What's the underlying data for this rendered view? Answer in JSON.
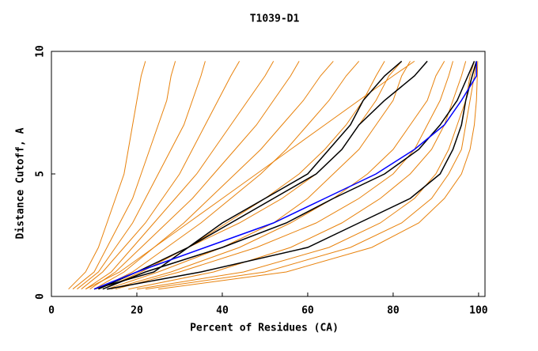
{
  "chart_data": {
    "type": "line",
    "title": "T1039-D1",
    "x_label": "Percent of Residues (CA)",
    "y_label": "Distance Cutoff, A",
    "xlim": [
      0,
      101.5
    ],
    "ylim": [
      0,
      10
    ],
    "xticks": [
      0,
      20,
      40,
      60,
      80,
      100
    ],
    "yticks": [
      0,
      5,
      10
    ],
    "series": [
      {
        "color": "#e8820c",
        "x": [
          4,
          8,
          11,
          13,
          15,
          17,
          18,
          19,
          20,
          21,
          22
        ],
        "values": [
          0.3,
          1,
          2,
          3,
          4,
          5,
          6,
          7,
          8,
          9,
          9.6
        ]
      },
      {
        "color": "#e8820c",
        "x": [
          5,
          10,
          13,
          16,
          19,
          21,
          23,
          25,
          27,
          28,
          29
        ],
        "values": [
          0.3,
          1,
          2,
          3,
          4,
          5,
          6,
          7,
          8,
          9,
          9.6
        ]
      },
      {
        "color": "#e8820c",
        "x": [
          6,
          11,
          15,
          19,
          22,
          25,
          28,
          31,
          33,
          35,
          36
        ],
        "values": [
          0.3,
          1,
          2,
          3,
          4,
          5,
          6,
          7,
          8,
          9,
          9.6
        ]
      },
      {
        "color": "#e8820c",
        "x": [
          7,
          12,
          17,
          22,
          26,
          30,
          33,
          36,
          39,
          42,
          44
        ],
        "values": [
          0.3,
          1,
          2,
          3,
          4,
          5,
          6,
          7,
          8,
          9,
          9.6
        ]
      },
      {
        "color": "#e8820c",
        "x": [
          8,
          14,
          19,
          24,
          29,
          34,
          38,
          42,
          46,
          50,
          52
        ],
        "values": [
          0.3,
          1,
          2,
          3,
          4,
          5,
          6,
          7,
          8,
          9,
          9.6
        ]
      },
      {
        "color": "#e8820c",
        "x": [
          9,
          15,
          21,
          27,
          33,
          38,
          43,
          48,
          52,
          56,
          58
        ],
        "values": [
          0.3,
          1,
          2,
          3,
          4,
          5,
          6,
          7,
          8,
          9,
          9.6
        ]
      },
      {
        "color": "#e8820c",
        "x": [
          10,
          17,
          24,
          31,
          37,
          43,
          49,
          54,
          59,
          63,
          66
        ],
        "values": [
          0.3,
          1,
          2,
          3,
          4,
          5,
          6,
          7,
          8,
          9,
          9.6
        ]
      },
      {
        "color": "#e8820c",
        "x": [
          11,
          19,
          27,
          35,
          42,
          49,
          55,
          60,
          65,
          69,
          72
        ],
        "values": [
          0.3,
          1,
          2,
          3,
          4,
          5,
          6,
          7,
          8,
          9,
          9.6
        ]
      },
      {
        "color": "#e8820c",
        "x": [
          12,
          21,
          32,
          41,
          50,
          58,
          64,
          69,
          73,
          76,
          78
        ],
        "values": [
          0.3,
          1,
          2,
          3,
          4,
          5,
          6,
          7,
          8,
          9,
          9.6
        ]
      },
      {
        "color": "#e8820c",
        "x": [
          13,
          25,
          40,
          52,
          60,
          66,
          72,
          76,
          80,
          82,
          84
        ],
        "values": [
          0.3,
          1,
          2,
          3,
          4,
          5,
          6,
          7,
          8,
          9,
          9.6
        ]
      },
      {
        "color": "#e8820c",
        "x": [
          15,
          30,
          48,
          62,
          72,
          80,
          85,
          88,
          91,
          93,
          94
        ],
        "values": [
          0.3,
          1,
          2,
          3,
          4,
          5,
          6,
          7,
          8,
          9,
          9.6
        ]
      },
      {
        "color": "#e8820c",
        "x": [
          18,
          38,
          56,
          68,
          77,
          84,
          89,
          92,
          94,
          96,
          97
        ],
        "values": [
          0.3,
          1,
          2,
          3,
          4,
          5,
          6,
          7,
          8,
          9,
          9.6
        ]
      },
      {
        "color": "#e8820c",
        "x": [
          20,
          45,
          65,
          77,
          85,
          90,
          93,
          95,
          97,
          98,
          99
        ],
        "values": [
          0.3,
          1,
          2,
          3,
          4,
          5,
          6,
          7,
          8,
          9,
          9.6
        ]
      },
      {
        "color": "#e8820c",
        "x": [
          22,
          50,
          70,
          82,
          89,
          93,
          96,
          97,
          98,
          99,
          99.5
        ],
        "values": [
          0.3,
          1,
          2,
          3,
          4,
          5,
          6,
          7,
          8,
          9,
          9.6
        ]
      },
      {
        "color": "#e8820c",
        "x": [
          25,
          55,
          75,
          86,
          92,
          96,
          98,
          99,
          99.5,
          99.7,
          99.8
        ],
        "values": [
          0.3,
          1,
          2,
          3,
          4,
          5,
          6,
          7,
          8,
          9,
          9.6
        ]
      },
      {
        "color": "#e8820c",
        "x": [
          8,
          16,
          24,
          32,
          40,
          48,
          56,
          64,
          72,
          80,
          85
        ],
        "values": [
          0.3,
          1,
          2,
          3,
          4,
          5,
          6,
          7,
          8,
          9,
          9.6
        ]
      },
      {
        "color": "#e8820c",
        "x": [
          10,
          20,
          32,
          44,
          54,
          62,
          68,
          72,
          76,
          79,
          82
        ],
        "values": [
          0.3,
          1,
          2,
          3,
          4,
          5,
          6,
          7,
          8,
          9,
          9.6
        ]
      },
      {
        "color": "#e8820c",
        "x": [
          14,
          28,
          44,
          56,
          66,
          74,
          80,
          84,
          88,
          90,
          92
        ],
        "values": [
          0.3,
          1,
          2,
          3,
          4,
          5,
          6,
          7,
          8,
          9,
          9.6
        ]
      },
      {
        "color": "#000000",
        "x": [
          10,
          24,
          32,
          40,
          50,
          60,
          65,
          70,
          73,
          78,
          82
        ],
        "values": [
          0.3,
          1,
          2,
          3,
          4,
          5,
          6,
          7,
          8,
          9,
          9.6
        ]
      },
      {
        "color": "#000000",
        "x": [
          11,
          20,
          32,
          42,
          52,
          62,
          68,
          72,
          78,
          85,
          88
        ],
        "values": [
          0.3,
          1,
          2,
          3,
          4,
          5,
          6,
          7,
          8,
          9,
          9.6
        ]
      },
      {
        "color": "#000000",
        "x": [
          12,
          22,
          40,
          55,
          66,
          78,
          86,
          91,
          95,
          97.5,
          99
        ],
        "values": [
          0.3,
          1,
          2,
          3,
          4,
          5,
          6,
          7,
          8,
          9,
          9.6
        ]
      },
      {
        "color": "#000000",
        "x": [
          13,
          35,
          60,
          72,
          84,
          91,
          94,
          96,
          97,
          98.5,
          99.5
        ],
        "values": [
          0.3,
          1,
          2,
          3,
          4,
          5,
          6,
          7,
          8,
          9,
          9.6
        ]
      },
      {
        "color": "#0000ff",
        "x": [
          10,
          20,
          36,
          52,
          64,
          76,
          85,
          92,
          96,
          99.5,
          99.5
        ],
        "values": [
          0.3,
          1,
          2,
          3,
          4,
          5,
          6,
          7,
          8,
          9,
          9.6
        ]
      }
    ]
  }
}
